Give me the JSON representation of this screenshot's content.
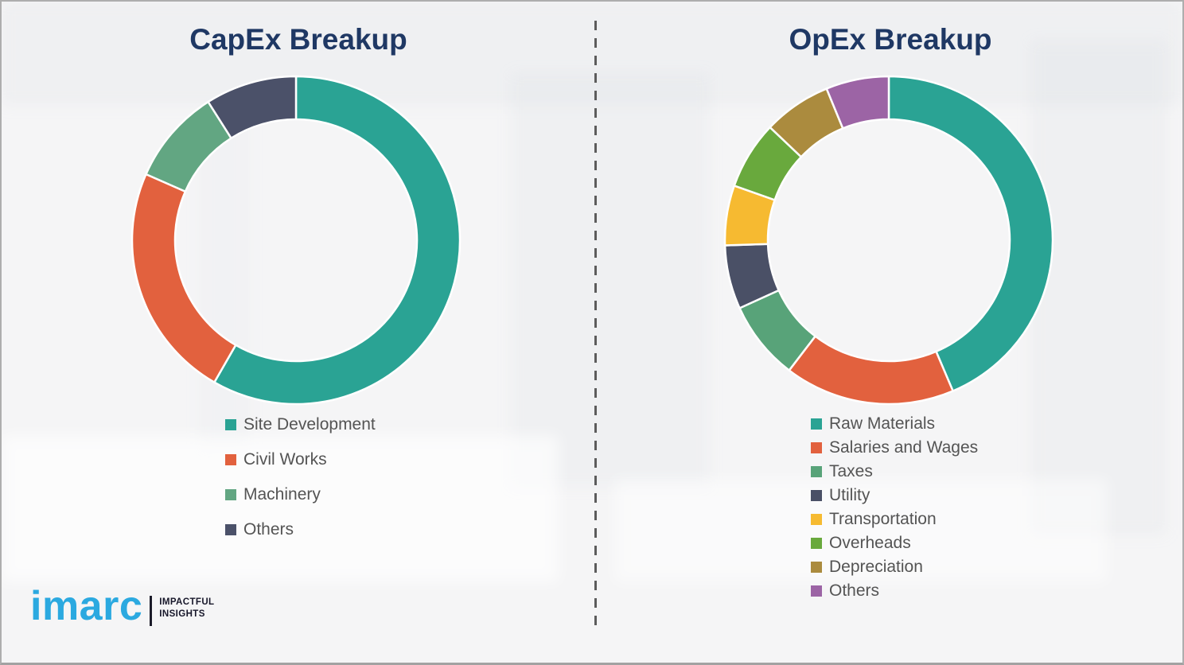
{
  "page": {
    "background_color": "#f5f5f6",
    "border_color": "#aeaeae"
  },
  "branding": {
    "logo_text": "imarc",
    "logo_color": "#2BA9E0",
    "tagline_line1": "IMPACTFUL",
    "tagline_line2": "INSIGHTS"
  },
  "divider": {
    "style": "vertical-dashed",
    "color": "#5c5c5c"
  },
  "chart_data": [
    {
      "type": "pie",
      "subtype": "donut",
      "title": "CapEx Breakup",
      "title_color": "#1F3864",
      "labels": [
        "Site Development",
        "Civil Works",
        "Machinery",
        "Others"
      ],
      "values": [
        58.3,
        23.3,
        9.4,
        9.0
      ],
      "values_unit": "% (estimated from arc angles, no data labels shown)",
      "colors": [
        "#2AA394",
        "#E2613E",
        "#62A682",
        "#4B5169"
      ],
      "start_angle_deg": 0,
      "direction": "clockwise",
      "inner_radius_ratio": 0.74,
      "legend_position": "below-left",
      "legend_text_color": "#545454",
      "separator_color": "#ffffff"
    },
    {
      "type": "pie",
      "subtype": "donut",
      "title": "OpEx Breakup",
      "title_color": "#1F3864",
      "labels": [
        "Raw Materials",
        "Salaries and Wages",
        "Taxes",
        "Utility",
        "Transportation",
        "Overheads",
        "Depreciation",
        "Others"
      ],
      "values": [
        43.6,
        16.8,
        7.8,
        6.3,
        5.9,
        6.7,
        6.7,
        6.2
      ],
      "values_unit": "% (estimated from arc angles, no data labels shown)",
      "colors": [
        "#2AA394",
        "#E2613E",
        "#58A379",
        "#4A5066",
        "#F6BA31",
        "#69A93D",
        "#AB8B3E",
        "#9C64A5"
      ],
      "start_angle_deg": 0,
      "direction": "clockwise",
      "inner_radius_ratio": 0.74,
      "legend_position": "below-left",
      "legend_text_color": "#545454",
      "separator_color": "#ffffff"
    }
  ]
}
